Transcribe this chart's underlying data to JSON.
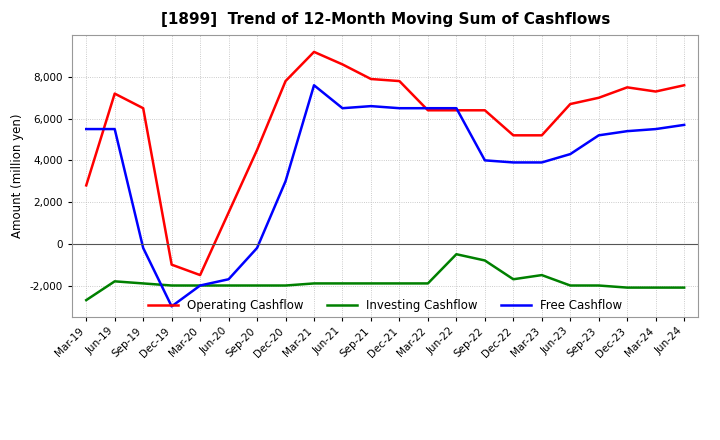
{
  "title": "[1899]  Trend of 12-Month Moving Sum of Cashflows",
  "ylabel": "Amount (million yen)",
  "x_labels": [
    "Mar-19",
    "Jun-19",
    "Sep-19",
    "Dec-19",
    "Mar-20",
    "Jun-20",
    "Sep-20",
    "Dec-20",
    "Mar-21",
    "Jun-21",
    "Sep-21",
    "Dec-21",
    "Mar-22",
    "Jun-22",
    "Sep-22",
    "Dec-22",
    "Mar-23",
    "Jun-23",
    "Sep-23",
    "Dec-23",
    "Mar-24",
    "Jun-24"
  ],
  "operating": [
    2800,
    7200,
    6500,
    -1000,
    -1500,
    1500,
    4500,
    7800,
    9200,
    8600,
    7900,
    7800,
    6400,
    6400,
    6400,
    5200,
    5200,
    6700,
    7000,
    7500,
    7300,
    7600
  ],
  "investing": [
    -2700,
    -1800,
    -1900,
    -2000,
    -2000,
    -2000,
    -2000,
    -2000,
    -1900,
    -1900,
    -1900,
    -1900,
    -1900,
    -500,
    -800,
    -1700,
    -1500,
    -2000,
    -2000,
    -2100,
    -2100,
    -2100
  ],
  "free": [
    5500,
    5500,
    -200,
    -3000,
    -2000,
    -1700,
    -200,
    3000,
    7600,
    6500,
    6600,
    6500,
    6500,
    6500,
    4000,
    3900,
    3900,
    4300,
    5200,
    5400,
    5500,
    5700
  ],
  "operating_color": "#ff0000",
  "investing_color": "#008000",
  "free_color": "#0000ff",
  "ylim": [
    -3500,
    10000
  ],
  "yticks": [
    -2000,
    0,
    2000,
    4000,
    6000,
    8000
  ],
  "background_color": "#ffffff",
  "grid_color": "#bbbbbb"
}
